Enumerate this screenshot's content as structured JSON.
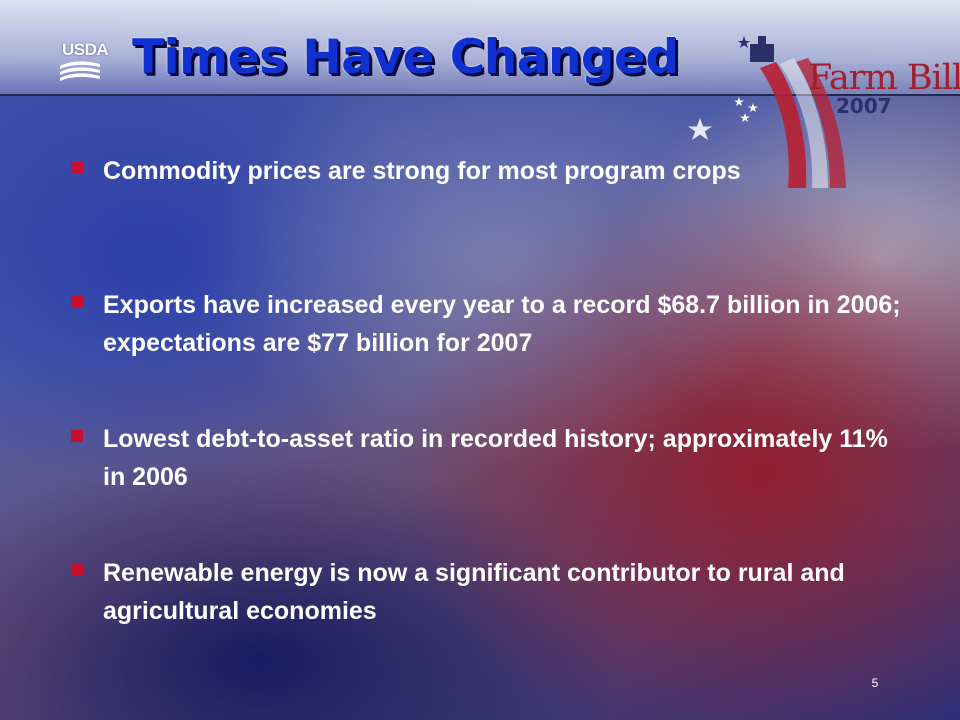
{
  "slide": {
    "title": "Times Have Changed",
    "page_number": "5",
    "logos": {
      "usda": "USDA",
      "farm_bill": "Farm Bill",
      "farm_bill_year": "2007"
    },
    "bullets": [
      {
        "text": "Commodity prices are strong for most program crops"
      },
      {
        "text": "Exports have increased every year to a record $68.7 billion in 2006; expectations are $77 billion for 2007"
      },
      {
        "text": "Lowest debt-to-asset ratio in recorded history; approximately 11% in 2006"
      },
      {
        "text": "Renewable energy is now a significant contributor to rural and agricultural economies"
      }
    ]
  },
  "colors": {
    "title": "#1030d0",
    "bullet_marker": "#c8102e",
    "body_text": "#ffffff",
    "farm_bill_red": "#a31e2d",
    "farm_bill_navy": "#2b2f6a"
  }
}
